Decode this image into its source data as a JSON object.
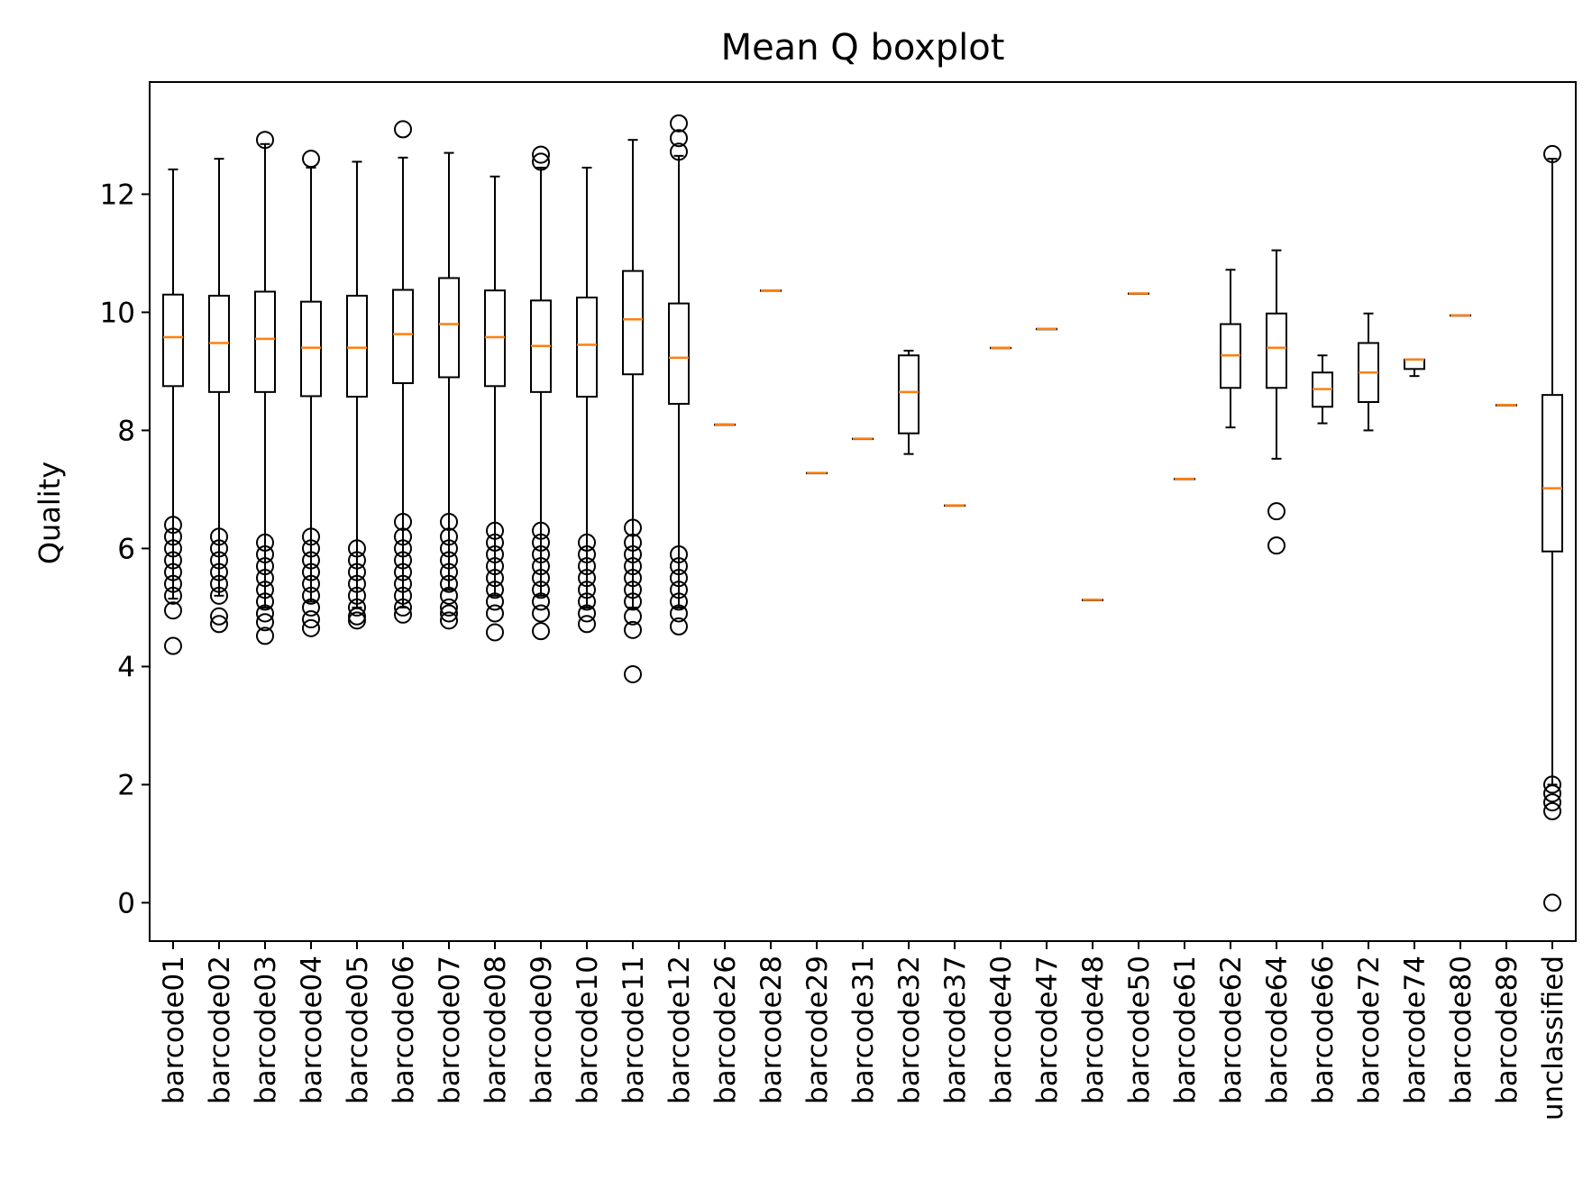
{
  "chart_data": {
    "type": "boxplot",
    "title": "Mean Q boxplot",
    "xlabel": "",
    "ylabel": "Quality",
    "ylim": [
      -0.65,
      13.9
    ],
    "yticks": [
      0,
      2,
      4,
      6,
      8,
      10,
      12
    ],
    "grid": false,
    "legend": "none",
    "colors": {
      "box": "#000000",
      "median": "#ff7f0e",
      "flier": "#000000"
    },
    "categories": [
      "barcode01",
      "barcode02",
      "barcode03",
      "barcode04",
      "barcode05",
      "barcode06",
      "barcode07",
      "barcode08",
      "barcode09",
      "barcode10",
      "barcode11",
      "barcode12",
      "barcode26",
      "barcode28",
      "barcode29",
      "barcode31",
      "barcode32",
      "barcode37",
      "barcode40",
      "barcode47",
      "barcode48",
      "barcode50",
      "barcode61",
      "barcode62",
      "barcode64",
      "barcode66",
      "barcode72",
      "barcode74",
      "barcode80",
      "barcode89",
      "unclassified"
    ],
    "boxes": [
      {
        "whislo": 5.15,
        "q1": 8.75,
        "med": 9.58,
        "q3": 10.3,
        "whishi": 12.42,
        "fliers": [
          6.4,
          6.2,
          6.0,
          5.8,
          5.6,
          5.4,
          5.2,
          4.95,
          4.35
        ]
      },
      {
        "whislo": 5.2,
        "q1": 8.65,
        "med": 9.48,
        "q3": 10.28,
        "whishi": 12.6,
        "fliers": [
          6.2,
          6.0,
          5.8,
          5.6,
          5.4,
          5.2,
          4.85,
          4.72
        ]
      },
      {
        "whislo": 5.0,
        "q1": 8.65,
        "med": 9.55,
        "q3": 10.35,
        "whishi": 12.85,
        "fliers": [
          12.92,
          6.1,
          5.9,
          5.7,
          5.5,
          5.3,
          5.1,
          4.9,
          4.75,
          4.52
        ]
      },
      {
        "whislo": 5.1,
        "q1": 8.58,
        "med": 9.4,
        "q3": 10.18,
        "whishi": 12.45,
        "fliers": [
          12.6,
          6.2,
          6.0,
          5.8,
          5.6,
          5.4,
          5.2,
          5.0,
          4.8,
          4.65
        ]
      },
      {
        "whislo": 5.0,
        "q1": 8.57,
        "med": 9.4,
        "q3": 10.28,
        "whishi": 12.55,
        "fliers": [
          6.0,
          5.8,
          5.6,
          5.4,
          5.2,
          5.0,
          4.85,
          4.78
        ]
      },
      {
        "whislo": 5.0,
        "q1": 8.8,
        "med": 9.63,
        "q3": 10.38,
        "whishi": 12.62,
        "fliers": [
          13.1,
          6.45,
          6.2,
          6.0,
          5.8,
          5.6,
          5.4,
          5.2,
          5.0,
          4.88
        ]
      },
      {
        "whislo": 5.3,
        "q1": 8.9,
        "med": 9.8,
        "q3": 10.58,
        "whishi": 12.7,
        "fliers": [
          6.45,
          6.2,
          6.0,
          5.8,
          5.6,
          5.4,
          5.2,
          5.0,
          4.9,
          4.78
        ]
      },
      {
        "whislo": 5.2,
        "q1": 8.75,
        "med": 9.58,
        "q3": 10.37,
        "whishi": 12.3,
        "fliers": [
          6.3,
          6.1,
          5.9,
          5.7,
          5.5,
          5.3,
          5.1,
          4.9,
          4.58
        ]
      },
      {
        "whislo": 5.2,
        "q1": 8.65,
        "med": 9.43,
        "q3": 10.2,
        "whishi": 12.45,
        "fliers": [
          12.67,
          12.55,
          6.3,
          6.1,
          5.9,
          5.7,
          5.5,
          5.3,
          5.1,
          4.9,
          4.6
        ]
      },
      {
        "whislo": 5.0,
        "q1": 8.57,
        "med": 9.45,
        "q3": 10.25,
        "whishi": 12.45,
        "fliers": [
          6.1,
          5.9,
          5.7,
          5.5,
          5.3,
          5.1,
          4.9,
          4.72
        ]
      },
      {
        "whislo": 5.0,
        "q1": 8.95,
        "med": 9.88,
        "q3": 10.7,
        "whishi": 12.92,
        "fliers": [
          6.35,
          6.1,
          5.9,
          5.7,
          5.5,
          5.3,
          5.1,
          4.85,
          4.62,
          3.87
        ]
      },
      {
        "whislo": 5.0,
        "q1": 8.45,
        "med": 9.23,
        "q3": 10.15,
        "whishi": 12.65,
        "fliers": [
          13.2,
          12.95,
          12.72,
          5.9,
          5.7,
          5.5,
          5.3,
          5.1,
          4.9,
          4.68
        ]
      },
      {
        "whislo": 8.1,
        "q1": 8.1,
        "med": 8.1,
        "q3": 8.1,
        "whishi": 8.1,
        "fliers": []
      },
      {
        "whislo": 10.37,
        "q1": 10.37,
        "med": 10.37,
        "q3": 10.37,
        "whishi": 10.37,
        "fliers": []
      },
      {
        "whislo": 7.28,
        "q1": 7.28,
        "med": 7.28,
        "q3": 7.28,
        "whishi": 7.28,
        "fliers": []
      },
      {
        "whislo": 7.86,
        "q1": 7.86,
        "med": 7.86,
        "q3": 7.86,
        "whishi": 7.86,
        "fliers": []
      },
      {
        "whislo": 7.6,
        "q1": 7.95,
        "med": 8.65,
        "q3": 9.27,
        "whishi": 9.35,
        "fliers": []
      },
      {
        "whislo": 6.73,
        "q1": 6.73,
        "med": 6.73,
        "q3": 6.73,
        "whishi": 6.73,
        "fliers": []
      },
      {
        "whislo": 9.4,
        "q1": 9.4,
        "med": 9.4,
        "q3": 9.4,
        "whishi": 9.4,
        "fliers": []
      },
      {
        "whislo": 9.72,
        "q1": 9.72,
        "med": 9.72,
        "q3": 9.72,
        "whishi": 9.72,
        "fliers": []
      },
      {
        "whislo": 5.13,
        "q1": 5.13,
        "med": 5.13,
        "q3": 5.13,
        "whishi": 5.13,
        "fliers": []
      },
      {
        "whislo": 10.32,
        "q1": 10.32,
        "med": 10.32,
        "q3": 10.32,
        "whishi": 10.32,
        "fliers": []
      },
      {
        "whislo": 7.18,
        "q1": 7.18,
        "med": 7.18,
        "q3": 7.18,
        "whishi": 7.18,
        "fliers": []
      },
      {
        "whislo": 8.05,
        "q1": 8.72,
        "med": 9.27,
        "q3": 9.8,
        "whishi": 10.72,
        "fliers": []
      },
      {
        "whislo": 7.52,
        "q1": 8.72,
        "med": 9.4,
        "q3": 9.98,
        "whishi": 11.05,
        "fliers": [
          6.63,
          6.05
        ]
      },
      {
        "whislo": 8.12,
        "q1": 8.4,
        "med": 8.7,
        "q3": 8.98,
        "whishi": 9.27,
        "fliers": []
      },
      {
        "whislo": 8.0,
        "q1": 8.48,
        "med": 8.98,
        "q3": 9.48,
        "whishi": 9.98,
        "fliers": []
      },
      {
        "whislo": 8.92,
        "q1": 9.04,
        "med": 9.2,
        "q3": 9.2,
        "whishi": 9.2,
        "fliers": []
      },
      {
        "whislo": 9.95,
        "q1": 9.95,
        "med": 9.95,
        "q3": 9.95,
        "whishi": 9.95,
        "fliers": []
      },
      {
        "whislo": 8.43,
        "q1": 8.43,
        "med": 8.43,
        "q3": 8.43,
        "whishi": 8.43,
        "fliers": []
      },
      {
        "whislo": 2.0,
        "q1": 5.95,
        "med": 7.02,
        "q3": 8.6,
        "whishi": 12.6,
        "fliers": [
          12.68,
          2.0,
          1.85,
          1.7,
          1.55,
          0.0
        ]
      }
    ]
  }
}
